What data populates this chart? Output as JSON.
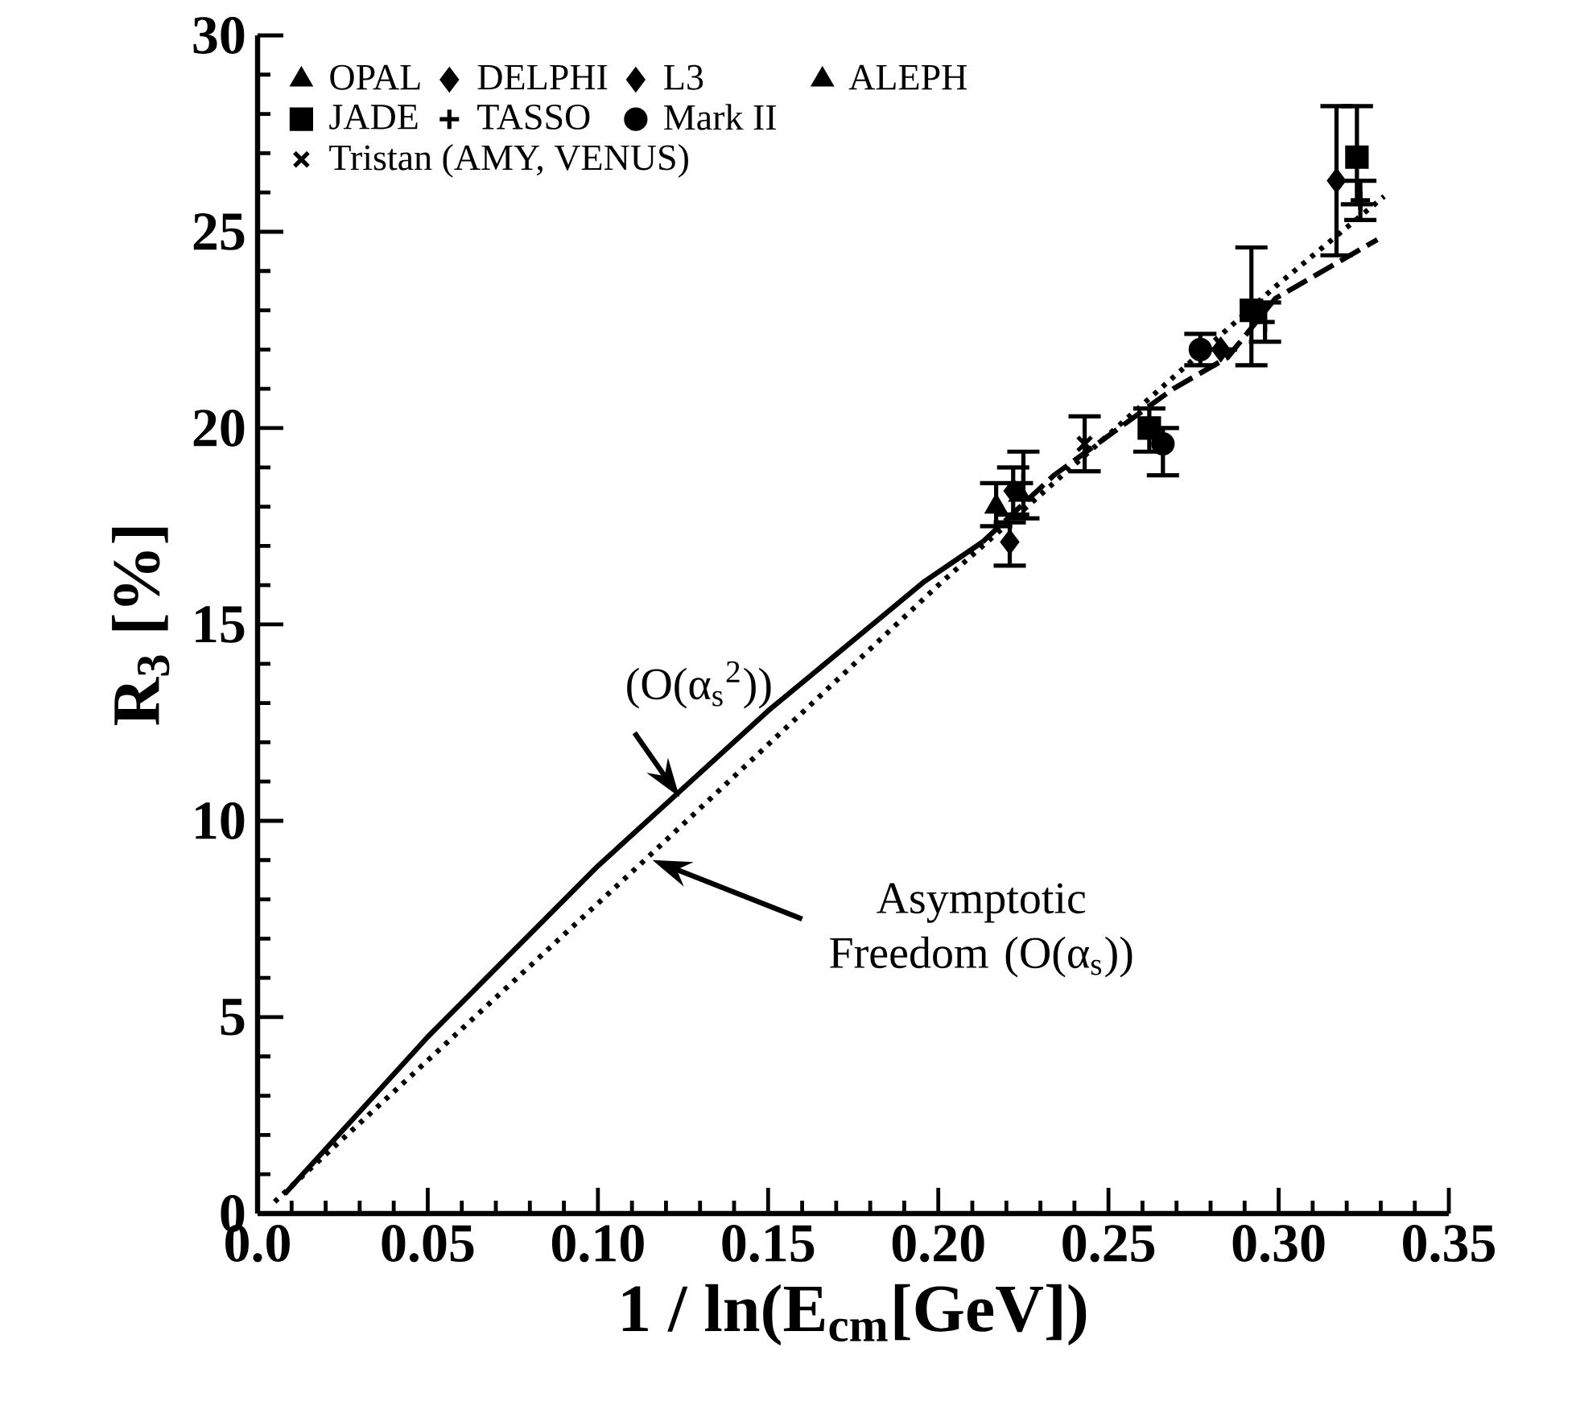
{
  "chart_data": {
    "type": "scatter",
    "xlabel": "1 / ln(E$_{cm}$[GeV])",
    "ylabel": "R$_{3}$ [%]",
    "xlim": [
      0,
      0.35
    ],
    "ylim": [
      0,
      30
    ],
    "xticks": [
      {
        "value": 0,
        "label": "0.0"
      },
      0.05,
      {
        "value": 0.1,
        "label": "0.10"
      },
      0.15,
      {
        "value": 0.2,
        "label": "0.20"
      },
      0.25,
      {
        "value": 0.3,
        "label": "0.30"
      },
      0.35
    ],
    "yticks": [
      0,
      5,
      10,
      15,
      20,
      25,
      30
    ],
    "legend": "top left",
    "series": [
      {
        "type": "line",
        "line_style": "solid",
        "color": "#000000",
        "x": [
          0.008,
          0.05,
          0.1,
          0.15,
          0.196,
          0.213
        ],
        "values": [
          0.5,
          4.5,
          8.85,
          12.8,
          16.1,
          17.1
        ]
      },
      {
        "type": "line",
        "line_style": "dashed",
        "color": "#000000",
        "x": [
          0.213,
          0.234,
          0.269,
          0.285,
          0.299,
          0.329
        ],
        "values": [
          17.1,
          18.8,
          21.0,
          21.8,
          23.3,
          24.8
        ]
      },
      {
        "type": "line",
        "line_style": "dotted",
        "color": "#000000",
        "x": [
          0.005,
          0.05,
          0.115,
          0.2,
          0.26,
          0.299,
          0.331
        ],
        "values": [
          0.3,
          3.9,
          9.1,
          16.0,
          20.6,
          23.6,
          25.9
        ]
      },
      {
        "name": "OPAL",
        "marker": "triangle",
        "color": "#000000",
        "x": [
          0.217
        ],
        "values": [
          18.0
        ],
        "errors": [
          [
            17.5,
            18.6
          ]
        ]
      },
      {
        "name": "DELPHI",
        "marker": "diamond",
        "color": "#000000",
        "x": [
          0.222,
          0.317
        ],
        "values": [
          18.4,
          26.3
        ],
        "errors": [
          [
            17.8,
            19.0
          ],
          [
            24.4,
            28.2
          ]
        ]
      },
      {
        "name": "L3",
        "marker": "diamond",
        "color": "#000000",
        "x": [
          0.221,
          0.283
        ],
        "values": [
          17.1,
          22.0
        ],
        "errors": [
          [
            16.5,
            17.6
          ],
          null
        ]
      },
      {
        "name": "ALEPH",
        "marker": "triangle",
        "color": "#000000",
        "x": [
          0.224
        ],
        "values": [
          18.3
        ]
      },
      {
        "name": "JADE",
        "marker": "square",
        "color": "#000000",
        "x": [
          0.262,
          0.292,
          0.323
        ],
        "values": [
          20.0,
          23.0,
          26.9
        ],
        "errors": [
          [
            19.4,
            20.5
          ],
          [
            21.6,
            24.6
          ],
          [
            25.7,
            28.2
          ]
        ]
      },
      {
        "name": "TASSO",
        "color": "#000000",
        "x": [
          0.225,
          0.296,
          0.324
        ],
        "values": [
          18.6,
          22.7,
          25.8
        ],
        "errors": [
          [
            17.7,
            19.4
          ],
          [
            22.2,
            23.2
          ],
          [
            25.3,
            26.3
          ]
        ]
      },
      {
        "name": "Mark II",
        "marker": "circle",
        "color": "#000000",
        "x": [
          0.266,
          0.277
        ],
        "values": [
          19.6,
          22.0
        ],
        "errors": [
          [
            18.8,
            20.0
          ],
          [
            21.6,
            22.4
          ]
        ]
      },
      {
        "name": "Tristan (AMY, VENUS)",
        "marker": "cross",
        "color": "#000000",
        "x": [
          0.243
        ],
        "values": [
          19.6
        ],
        "errors": [
          [
            18.9,
            20.3
          ]
        ]
      }
    ],
    "annotations": [
      {
        "text": "(O(α$_{s}$$^{2}$))",
        "x": 0.124,
        "y": 10.6
      },
      "Asymptotic Freedom (O(α$_{s}$))"
    ]
  }
}
